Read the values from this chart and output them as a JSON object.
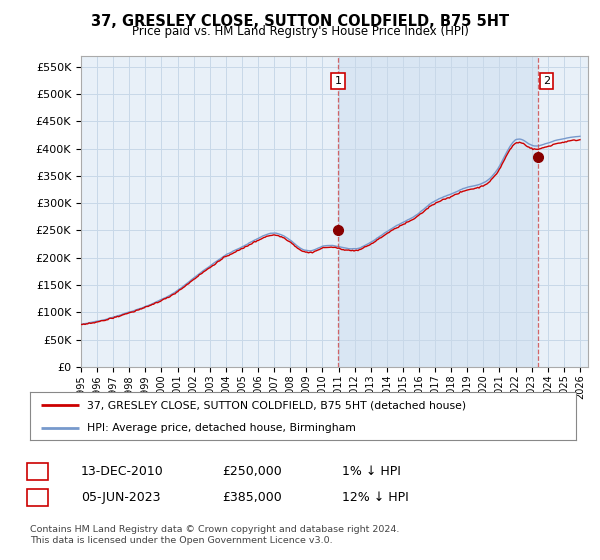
{
  "title": "37, GRESLEY CLOSE, SUTTON COLDFIELD, B75 5HT",
  "subtitle": "Price paid vs. HM Land Registry's House Price Index (HPI)",
  "ylim": [
    0,
    570000
  ],
  "yticks": [
    0,
    50000,
    100000,
    150000,
    200000,
    250000,
    300000,
    350000,
    400000,
    450000,
    500000,
    550000
  ],
  "ytick_labels": [
    "£0",
    "£50K",
    "£100K",
    "£150K",
    "£200K",
    "£250K",
    "£300K",
    "£350K",
    "£400K",
    "£450K",
    "£500K",
    "£550K"
  ],
  "hpi_color": "#7799CC",
  "price_color": "#CC0000",
  "marker_color": "#880000",
  "grid_color": "#C8D8E8",
  "plot_bg": "#E8F0F8",
  "shade_color": "#D0E0F0",
  "sale1_year": 2010.96,
  "sale1_price": 250000,
  "sale1_label": "1",
  "sale2_year": 2023.42,
  "sale2_price": 385000,
  "sale2_label": "2",
  "legend_line1": "37, GRESLEY CLOSE, SUTTON COLDFIELD, B75 5HT (detached house)",
  "legend_line2": "HPI: Average price, detached house, Birmingham",
  "note1_date": "13-DEC-2010",
  "note1_price": "£250,000",
  "note1_hpi": "1% ↓ HPI",
  "note2_date": "05-JUN-2023",
  "note2_price": "£385,000",
  "note2_hpi": "12% ↓ HPI",
  "copyright": "Contains HM Land Registry data © Crown copyright and database right 2024.\nThis data is licensed under the Open Government Licence v3.0."
}
